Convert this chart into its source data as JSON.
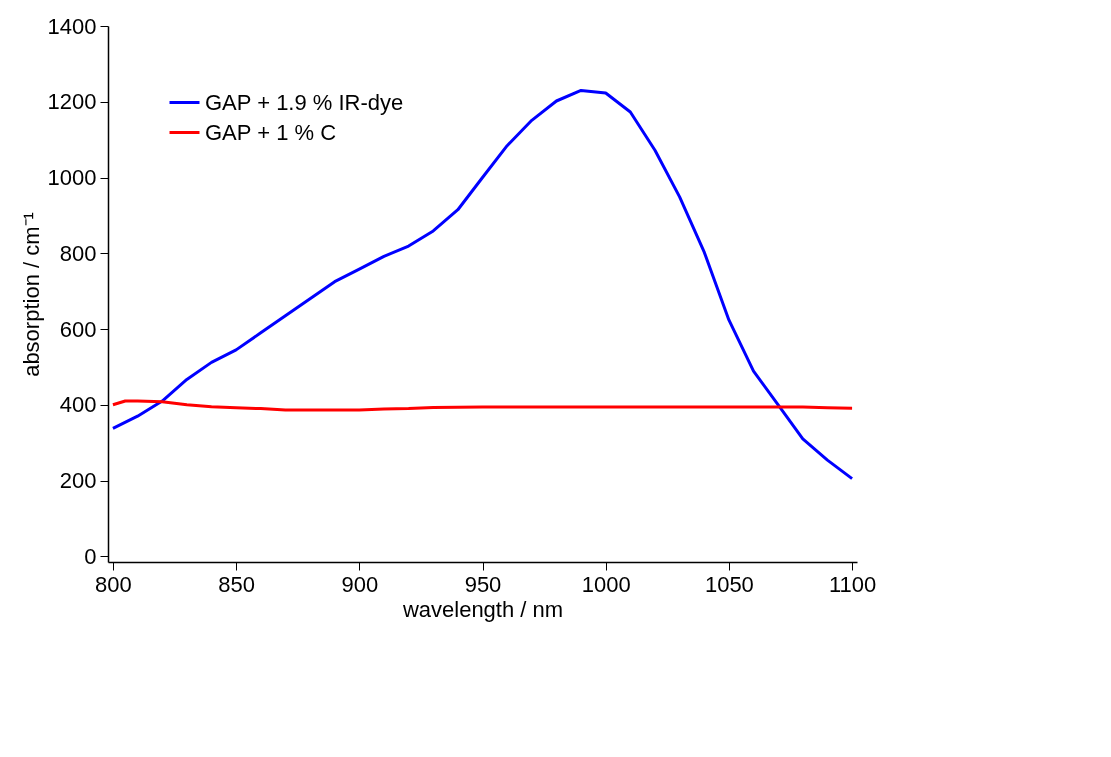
{
  "chart_data": {
    "type": "line",
    "xlabel": "wavelength / nm",
    "ylabel": "absorption / cm⁻¹",
    "xlim": [
      798,
      1102
    ],
    "ylim": [
      -15,
      1400
    ],
    "xticks": [
      800,
      850,
      900,
      950,
      1000,
      1050,
      1100
    ],
    "yticks": [
      0,
      200,
      400,
      600,
      800,
      1000,
      1200,
      1400
    ],
    "grid": false,
    "legend": "top left",
    "marker": "none",
    "line_style": "solid",
    "series": [
      {
        "name": "GAP + 1.9 % IR-dye",
        "color": "#0000ff",
        "x": [
          800,
          810,
          820,
          830,
          840,
          850,
          860,
          870,
          880,
          890,
          900,
          910,
          920,
          930,
          940,
          950,
          960,
          970,
          980,
          990,
          1000,
          1010,
          1020,
          1030,
          1040,
          1050,
          1060,
          1070,
          1080,
          1090,
          1100
        ],
        "values": [
          338,
          370,
          410,
          467,
          512,
          545,
          590,
          635,
          680,
          725,
          758,
          792,
          819,
          859,
          915,
          1000,
          1084,
          1151,
          1202,
          1230,
          1223,
          1173,
          1072,
          949,
          803,
          624,
          489,
          400,
          310,
          254,
          205
        ]
      },
      {
        "name": "GAP + 1    % C",
        "color": "#ff0000",
        "x": [
          800,
          805,
          810,
          820,
          830,
          840,
          850,
          860,
          870,
          880,
          890,
          900,
          910,
          920,
          930,
          950,
          1000,
          1050,
          1080,
          1090,
          1100
        ],
        "values": [
          400,
          410,
          410,
          408,
          400,
          395,
          392,
          390,
          386,
          386,
          386,
          386,
          389,
          390,
          393,
          394,
          394,
          394,
          394,
          392,
          391
        ]
      }
    ]
  }
}
